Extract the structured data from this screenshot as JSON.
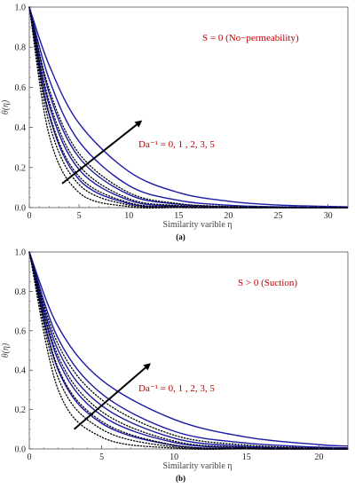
{
  "chart_data": [
    {
      "type": "line",
      "panel_label": "(a)",
      "xlabel": "Similarity varible η",
      "ylabel": "θ(η)",
      "xlim": [
        0,
        32
      ],
      "ylim": [
        0,
        1.0
      ],
      "xticks": [
        "0",
        "5",
        "10",
        "15",
        "20",
        "25",
        "30"
      ],
      "yticks": [
        "0.0",
        "0.2",
        "0.4",
        "0.6",
        "0.8",
        "1.0"
      ],
      "annotation": "S = 0 (No−permeability)",
      "parameter_label": "Da⁻¹ = 0, 1 , 2, 3, 5",
      "colors": {
        "solid": "#1a1aa6",
        "dotted": "#000000",
        "arrow": "#000000",
        "text": "#c00000"
      },
      "series": [
        {
          "style": "solid",
          "x": [
            0,
            2,
            5,
            10,
            15,
            20,
            25,
            32
          ],
          "y": [
            1.0,
            0.71,
            0.42,
            0.18,
            0.075,
            0.032,
            0.013,
            0.004
          ]
        },
        {
          "style": "solid",
          "x": [
            0,
            2,
            5,
            10,
            15,
            20,
            25,
            32
          ],
          "y": [
            1.0,
            0.64,
            0.33,
            0.11,
            0.036,
            0.012,
            0.004,
            0.001
          ]
        },
        {
          "style": "solid",
          "x": [
            0,
            2,
            5,
            10,
            15,
            20,
            25,
            32
          ],
          "y": [
            1.0,
            0.57,
            0.25,
            0.065,
            0.017,
            0.004,
            0.001,
            0.0
          ]
        },
        {
          "style": "solid",
          "x": [
            0,
            2,
            5,
            10,
            15,
            20,
            25,
            32
          ],
          "y": [
            1.0,
            0.51,
            0.19,
            0.037,
            0.007,
            0.001,
            0.0,
            0.0
          ]
        },
        {
          "style": "solid",
          "x": [
            0,
            2,
            5,
            10,
            15,
            20,
            25,
            32
          ],
          "y": [
            1.0,
            0.46,
            0.14,
            0.02,
            0.003,
            0.0,
            0.0,
            0.0
          ]
        },
        {
          "style": "dotted",
          "x": [
            0,
            2,
            5,
            10,
            15,
            20,
            25,
            32
          ],
          "y": [
            1.0,
            0.59,
            0.27,
            0.075,
            0.02,
            0.006,
            0.002,
            0.0
          ]
        },
        {
          "style": "dotted",
          "x": [
            0,
            2,
            5,
            10,
            15,
            20,
            25,
            32
          ],
          "y": [
            1.0,
            0.53,
            0.21,
            0.045,
            0.01,
            0.002,
            0.0,
            0.0
          ]
        },
        {
          "style": "dotted",
          "x": [
            0,
            2,
            5,
            10,
            15,
            20,
            25,
            32
          ],
          "y": [
            1.0,
            0.47,
            0.155,
            0.025,
            0.004,
            0.0,
            0.0,
            0.0
          ]
        },
        {
          "style": "dotted",
          "x": [
            0,
            2,
            5,
            10,
            15,
            20,
            25,
            32
          ],
          "y": [
            1.0,
            0.42,
            0.115,
            0.013,
            0.0015,
            0.0,
            0.0,
            0.0
          ]
        },
        {
          "style": "dotted",
          "x": [
            0,
            2,
            5,
            10,
            15,
            20,
            25,
            32
          ],
          "y": [
            1.0,
            0.36,
            0.075,
            0.005,
            0.0,
            0.0,
            0.0,
            0.0
          ]
        }
      ],
      "arrow": {
        "from": [
          3.3,
          0.12
        ],
        "to": [
          11.2,
          0.43
        ]
      }
    },
    {
      "type": "line",
      "panel_label": "(b)",
      "xlabel": "Similarity varible η",
      "ylabel": "θ(η)",
      "xlim": [
        0,
        22
      ],
      "ylim": [
        0,
        1.0
      ],
      "xticks": [
        "0",
        "5",
        "10",
        "15",
        "20"
      ],
      "yticks": [
        "0.0",
        "0.2",
        "0.4",
        "0.6",
        "0.8",
        "1.0"
      ],
      "annotation": "S > 0 (Suction)",
      "parameter_label": "Da⁻¹ = 0, 1 , 2, 3, 5",
      "colors": {
        "solid": "#1a1aa6",
        "dotted": "#000000",
        "arrow": "#000000",
        "text": "#c00000"
      },
      "series": [
        {
          "style": "solid",
          "x": [
            0,
            2,
            5,
            10,
            15,
            20,
            22
          ],
          "y": [
            1.0,
            0.62,
            0.35,
            0.15,
            0.06,
            0.022,
            0.015
          ]
        },
        {
          "style": "solid",
          "x": [
            0,
            2,
            5,
            10,
            15,
            20,
            22
          ],
          "y": [
            1.0,
            0.56,
            0.28,
            0.09,
            0.03,
            0.009,
            0.006
          ]
        },
        {
          "style": "solid",
          "x": [
            0,
            2,
            5,
            10,
            15,
            20,
            22
          ],
          "y": [
            1.0,
            0.5,
            0.22,
            0.055,
            0.013,
            0.003,
            0.002
          ]
        },
        {
          "style": "solid",
          "x": [
            0,
            2,
            5,
            10,
            15,
            20,
            22
          ],
          "y": [
            1.0,
            0.45,
            0.17,
            0.033,
            0.006,
            0.001,
            0.0
          ]
        },
        {
          "style": "solid",
          "x": [
            0,
            2,
            5,
            10,
            15,
            20,
            22
          ],
          "y": [
            1.0,
            0.4,
            0.13,
            0.018,
            0.002,
            0.0,
            0.0
          ]
        },
        {
          "style": "dotted",
          "x": [
            0,
            2,
            5,
            10,
            15,
            20,
            22
          ],
          "y": [
            1.0,
            0.53,
            0.25,
            0.07,
            0.02,
            0.005,
            0.003
          ]
        },
        {
          "style": "dotted",
          "x": [
            0,
            2,
            5,
            10,
            15,
            20,
            22
          ],
          "y": [
            1.0,
            0.47,
            0.19,
            0.04,
            0.008,
            0.001,
            0.0
          ]
        },
        {
          "style": "dotted",
          "x": [
            0,
            2,
            5,
            10,
            15,
            20,
            22
          ],
          "y": [
            1.0,
            0.41,
            0.14,
            0.02,
            0.003,
            0.0,
            0.0
          ]
        },
        {
          "style": "dotted",
          "x": [
            0,
            2,
            5,
            10,
            15,
            20,
            22
          ],
          "y": [
            1.0,
            0.36,
            0.1,
            0.01,
            0.001,
            0.0,
            0.0
          ]
        },
        {
          "style": "dotted",
          "x": [
            0,
            2,
            5,
            10,
            15,
            20,
            22
          ],
          "y": [
            1.0,
            0.3,
            0.06,
            0.004,
            0.0,
            0.0,
            0.0
          ]
        }
      ],
      "arrow": {
        "from": [
          3.1,
          0.1
        ],
        "to": [
          8.3,
          0.43
        ]
      }
    }
  ]
}
